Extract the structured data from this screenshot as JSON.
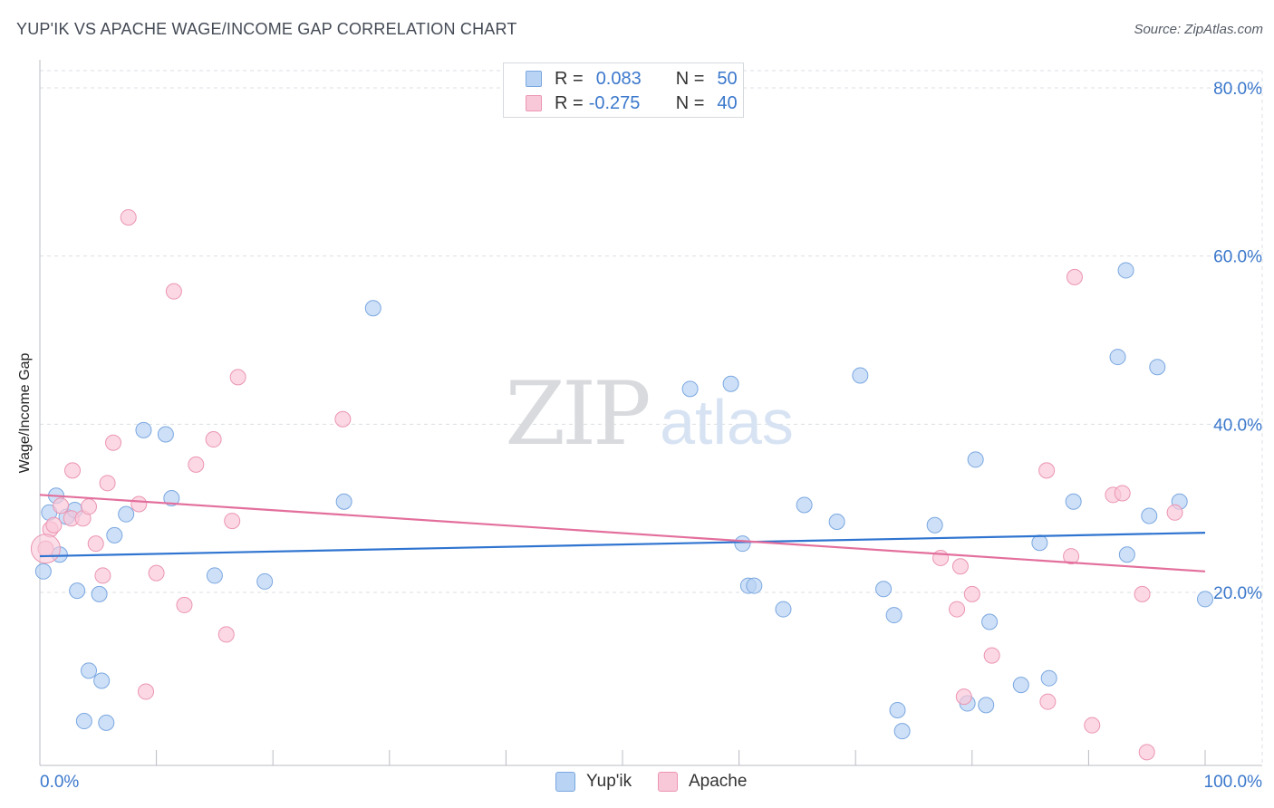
{
  "title": "YUP'IK VS APACHE WAGE/INCOME GAP CORRELATION CHART",
  "source": "Source: ZipAtlas.com",
  "watermark": {
    "zip": "ZIP",
    "atlas": "atlas"
  },
  "colors": {
    "blue_fill": "#b9d3f4",
    "blue_stroke": "#7aa7e0",
    "blue_line": "#2f74d0",
    "pink_fill": "#f9c8d8",
    "pink_stroke": "#eb95b2",
    "pink_line": "#e36f9c",
    "tick_label": "#3b78cc",
    "grid": "#dcdfe4"
  },
  "legend": {
    "rows": [
      {
        "r_label": "R =",
        "r_value": "0.083",
        "n_label": "N =",
        "n_value": "50"
      },
      {
        "r_label": "R =",
        "r_value": "-0.275",
        "n_label": "N =",
        "n_value": "40"
      }
    ],
    "series_names": [
      "Yup'ik",
      "Apache"
    ]
  },
  "chart_data": {
    "type": "scatter",
    "title": "YUP'IK VS APACHE WAGE/INCOME GAP CORRELATION CHART",
    "xlabel": "",
    "ylabel": "Wage/Income Gap",
    "xlim": [
      0,
      100
    ],
    "ylim": [
      0,
      85
    ],
    "x_tick_labels": [
      "0.0%",
      "100.0%"
    ],
    "y_ticks": [
      20,
      40,
      60,
      80
    ],
    "y_tick_labels": [
      "20.0%",
      "40.0%",
      "60.0%",
      "80.0%"
    ],
    "grid": true,
    "legend_position": "top-center",
    "series": [
      {
        "name": "Yup'ik",
        "trend": [
          [
            0,
            24.3
          ],
          [
            100,
            27.1
          ]
        ],
        "points": [
          [
            0.3,
            22.5
          ],
          [
            0.8,
            29.5
          ],
          [
            1.4,
            31.5
          ],
          [
            1.7,
            24.5
          ],
          [
            2.3,
            29.0
          ],
          [
            3.0,
            29.8
          ],
          [
            3.2,
            20.2
          ],
          [
            3.8,
            4.7
          ],
          [
            4.2,
            10.7
          ],
          [
            5.1,
            19.8
          ],
          [
            5.3,
            9.5
          ],
          [
            5.7,
            4.5
          ],
          [
            6.4,
            26.8
          ],
          [
            7.4,
            29.3
          ],
          [
            8.9,
            39.3
          ],
          [
            10.8,
            38.8
          ],
          [
            11.3,
            31.2
          ],
          [
            15.0,
            22.0
          ],
          [
            19.3,
            21.3
          ],
          [
            26.1,
            30.8
          ],
          [
            28.6,
            53.8
          ],
          [
            55.8,
            44.2
          ],
          [
            59.3,
            44.8
          ],
          [
            60.3,
            25.8
          ],
          [
            60.8,
            20.8
          ],
          [
            61.3,
            20.8
          ],
          [
            63.8,
            18.0
          ],
          [
            65.6,
            30.4
          ],
          [
            68.4,
            28.4
          ],
          [
            70.4,
            45.8
          ],
          [
            72.4,
            20.4
          ],
          [
            73.3,
            17.3
          ],
          [
            73.6,
            6.0
          ],
          [
            74.0,
            3.5
          ],
          [
            76.8,
            28.0
          ],
          [
            79.6,
            6.8
          ],
          [
            80.3,
            35.8
          ],
          [
            81.2,
            6.6
          ],
          [
            81.5,
            16.5
          ],
          [
            84.2,
            9.0
          ],
          [
            85.8,
            25.9
          ],
          [
            86.6,
            9.8
          ],
          [
            88.7,
            30.8
          ],
          [
            92.5,
            48.0
          ],
          [
            93.2,
            58.3
          ],
          [
            93.3,
            24.5
          ],
          [
            95.2,
            29.1
          ],
          [
            95.9,
            46.8
          ],
          [
            97.8,
            30.8
          ],
          [
            100.0,
            19.2
          ]
        ]
      },
      {
        "name": "Apache",
        "trend": [
          [
            0,
            31.6
          ],
          [
            100,
            22.5
          ]
        ],
        "points": [
          [
            0.5,
            25.2
          ],
          [
            0.9,
            27.5
          ],
          [
            1.2,
            28.0
          ],
          [
            1.8,
            30.3
          ],
          [
            2.7,
            28.8
          ],
          [
            2.8,
            34.5
          ],
          [
            3.7,
            28.8
          ],
          [
            4.2,
            30.2
          ],
          [
            4.8,
            25.8
          ],
          [
            5.4,
            22.0
          ],
          [
            5.8,
            33.0
          ],
          [
            6.3,
            37.8
          ],
          [
            7.6,
            64.6
          ],
          [
            8.5,
            30.5
          ],
          [
            9.1,
            8.2
          ],
          [
            10.0,
            22.3
          ],
          [
            11.5,
            55.8
          ],
          [
            12.4,
            18.5
          ],
          [
            13.4,
            35.2
          ],
          [
            14.9,
            38.2
          ],
          [
            16.0,
            15.0
          ],
          [
            16.5,
            28.5
          ],
          [
            17.0,
            45.6
          ],
          [
            26.0,
            40.6
          ],
          [
            77.3,
            24.1
          ],
          [
            78.7,
            18.0
          ],
          [
            79.0,
            23.1
          ],
          [
            79.3,
            7.6
          ],
          [
            80.0,
            19.8
          ],
          [
            81.7,
            12.5
          ],
          [
            86.4,
            34.5
          ],
          [
            86.5,
            7.0
          ],
          [
            88.5,
            24.3
          ],
          [
            88.8,
            57.5
          ],
          [
            90.3,
            4.2
          ],
          [
            92.1,
            31.6
          ],
          [
            92.9,
            31.8
          ],
          [
            94.6,
            19.8
          ],
          [
            95.0,
            1.0
          ],
          [
            97.4,
            29.5
          ]
        ]
      }
    ]
  }
}
